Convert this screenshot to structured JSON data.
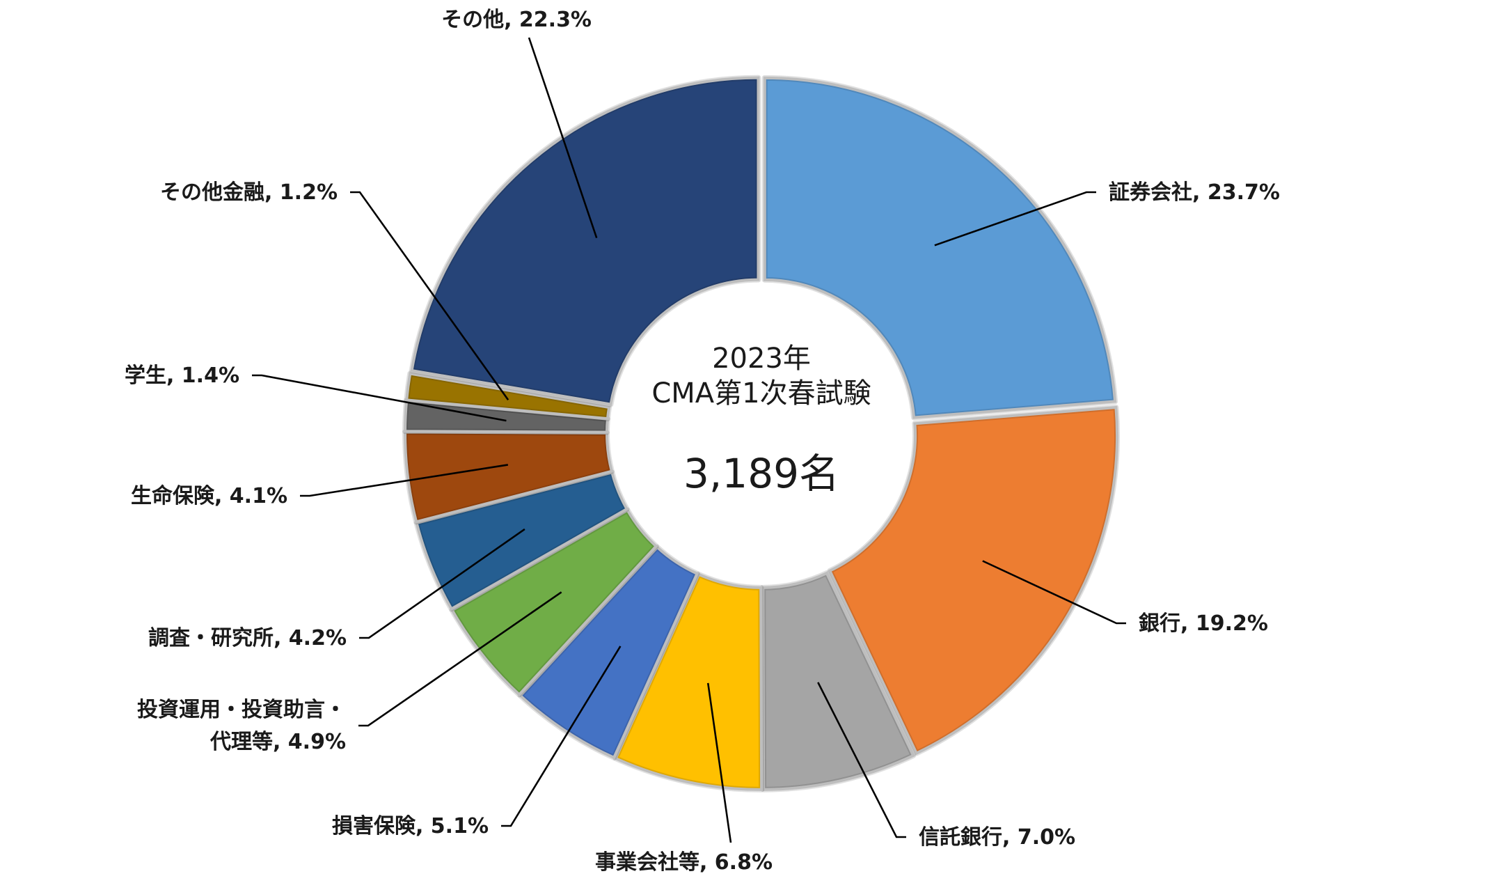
{
  "chart_data": {
    "type": "pie",
    "center_text": {
      "line1": "2023年",
      "line2": "CMA第1次春試験",
      "total": "3,189名"
    },
    "slices": [
      {
        "label": "証券会社",
        "value": 23.7,
        "value_label": "23.7%",
        "color": "#5b9bd5"
      },
      {
        "label": "銀行",
        "value": 19.2,
        "value_label": "19.2%",
        "color": "#ed7d31"
      },
      {
        "label": "信託銀行",
        "value": 7.0,
        "value_label": "7.0%",
        "color": "#a5a5a5"
      },
      {
        "label": "事業会社等",
        "value": 6.8,
        "value_label": "6.8%",
        "color": "#ffc000"
      },
      {
        "label": "損害保険",
        "value": 5.1,
        "value_label": "5.1%",
        "color": "#4472c4"
      },
      {
        "label": "投資運用・投資助言・代理等",
        "label_lines": [
          "投資運用・投資助言・",
          "代理等"
        ],
        "value": 4.9,
        "value_label": "4.9%",
        "color": "#70ad47"
      },
      {
        "label": "調査・研究所",
        "value": 4.2,
        "value_label": "4.2%",
        "color": "#255e91"
      },
      {
        "label": "生命保険",
        "value": 4.1,
        "value_label": "4.1%",
        "color": "#9e480e"
      },
      {
        "label": "学生",
        "value": 1.4,
        "value_label": "1.4%",
        "color": "#636363"
      },
      {
        "label": "その他金融",
        "value": 1.2,
        "value_label": "1.2%",
        "color": "#997300"
      },
      {
        "label": "その他",
        "value": 22.3,
        "value_label": "22.3%",
        "color": "#264478"
      }
    ],
    "legend": "none",
    "data_labels": "outside-with-leader-lines"
  }
}
